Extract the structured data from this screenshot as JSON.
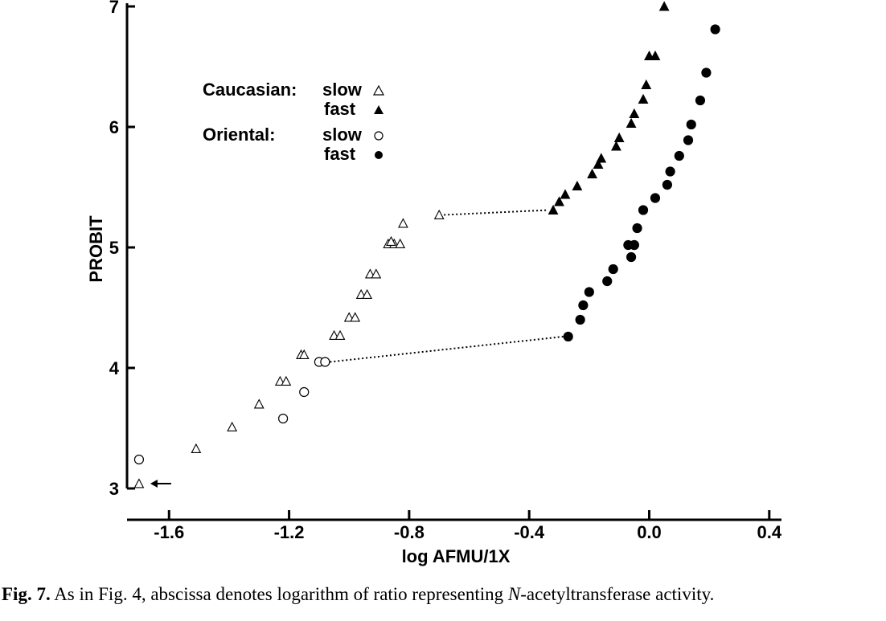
{
  "caption": {
    "label": "Fig. 7.",
    "text_before": "As in Fig. 4, abscissa denotes logarithm of ratio representing ",
    "italic": "N",
    "text_after": "-acetyltransferase activity."
  },
  "legend": {
    "group1": "Caucasian:",
    "group2": "Oriental:",
    "slow": "slow",
    "fast": "fast"
  },
  "chart_data": {
    "type": "scatter",
    "title": "",
    "xlabel": "log AFMU/1X",
    "ylabel": "PROBIT",
    "xlim": [
      -1.74,
      0.43
    ],
    "ylim": [
      3.0,
      7.0
    ],
    "xticks": [
      -1.6,
      -1.2,
      -0.8,
      -0.4,
      0.0,
      0.4
    ],
    "xtick_labels": [
      "-1.6",
      "-1.2",
      "-0.8",
      "-0.4",
      "0.0",
      "0.4"
    ],
    "yticks": [
      3,
      4,
      5,
      6,
      7
    ],
    "ytick_labels": [
      "3",
      "4",
      "5",
      "6",
      "7"
    ],
    "legend_position": "upper-left",
    "series": [
      {
        "name": "Caucasian: slow",
        "marker": "open-triangle",
        "x": [
          -1.7,
          -1.51,
          -1.39,
          -1.3,
          -1.23,
          -1.21,
          -1.16,
          -1.15,
          -1.05,
          -1.03,
          -1.0,
          -0.98,
          -0.96,
          -0.94,
          -0.93,
          -0.91,
          -0.87,
          -0.85,
          -0.83,
          -0.86,
          -0.82,
          -0.7
        ],
        "y": [
          3.04,
          3.33,
          3.51,
          3.7,
          3.89,
          3.89,
          4.11,
          4.11,
          4.27,
          4.27,
          4.42,
          4.42,
          4.61,
          4.61,
          4.78,
          4.78,
          5.03,
          5.03,
          5.03,
          5.05,
          5.2,
          5.27
        ]
      },
      {
        "name": "Caucasian: fast",
        "marker": "filled-triangle",
        "x": [
          -0.32,
          -0.3,
          -0.28,
          -0.24,
          -0.19,
          -0.17,
          -0.16,
          -0.11,
          -0.1,
          -0.06,
          -0.05,
          -0.02,
          -0.01,
          0.0,
          0.02,
          0.05
        ],
        "y": [
          5.31,
          5.38,
          5.44,
          5.51,
          5.61,
          5.69,
          5.74,
          5.84,
          5.91,
          6.03,
          6.11,
          6.23,
          6.35,
          6.59,
          6.59,
          7.0
        ],
        "connector_from": [
          -0.7,
          5.27
        ]
      },
      {
        "name": "Oriental: slow",
        "marker": "open-circle",
        "x": [
          -1.7,
          -1.22,
          -1.15,
          -1.1,
          -1.08
        ],
        "y": [
          3.24,
          3.58,
          3.8,
          4.05,
          4.05
        ]
      },
      {
        "name": "Oriental: fast",
        "marker": "filled-circle",
        "x": [
          -0.27,
          -0.23,
          -0.22,
          -0.2,
          -0.14,
          -0.12,
          -0.06,
          -0.07,
          -0.05,
          -0.04,
          -0.05,
          -0.02,
          0.02,
          0.06,
          0.07,
          0.1,
          0.13,
          0.14,
          0.17,
          0.19,
          0.22
        ],
        "y": [
          4.26,
          4.4,
          4.52,
          4.63,
          4.72,
          4.82,
          4.92,
          5.02,
          5.02,
          5.16,
          5.02,
          5.31,
          5.41,
          5.52,
          5.63,
          5.76,
          5.89,
          6.02,
          6.22,
          6.45,
          6.81
        ],
        "connector_from": [
          -1.08,
          4.05
        ]
      }
    ],
    "annotations": [
      {
        "type": "arrow",
        "points_to": [
          -1.7,
          3.04
        ],
        "direction": "left"
      }
    ]
  }
}
